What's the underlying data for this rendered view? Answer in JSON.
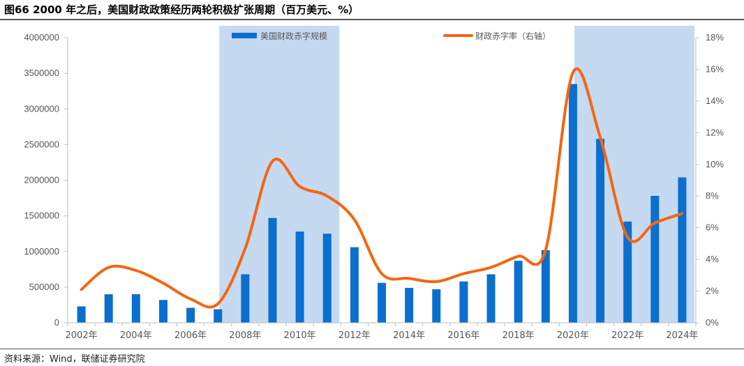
{
  "title": "图66 2000 年之后，美国财政政策经历两轮积极扩张周期（百万美元、%）",
  "source": "资料来源：Wind，联储证券研究院",
  "colors": {
    "bar": "#0a6fcf",
    "line": "#f5650f",
    "shade": "#c5d9f1",
    "axis": "#bfbfbf"
  },
  "chart_data": {
    "type": "bar",
    "title": "图66 2000 年之后，美国财政政策经历两轮积极扩张周期（百万美元、%）",
    "categories": [
      "2002年",
      "2003年",
      "2004年",
      "2005年",
      "2006年",
      "2007年",
      "2008年",
      "2009年",
      "2010年",
      "2011年",
      "2012年",
      "2013年",
      "2014年",
      "2015年",
      "2016年",
      "2017年",
      "2018年",
      "2019年",
      "2020年",
      "2021年",
      "2022年",
      "2023年",
      "2024年"
    ],
    "x_tick_labels": [
      "2002年",
      "",
      "2004年",
      "",
      "2006年",
      "",
      "2008年",
      "",
      "2010年",
      "",
      "2012年",
      "",
      "2014年",
      "",
      "2016年",
      "",
      "2018年",
      "",
      "2020年",
      "",
      "2022年",
      "",
      "2024年"
    ],
    "series": [
      {
        "name": "美国财政赤字规模",
        "type": "bar",
        "axis": "left",
        "values": [
          230000,
          400000,
          400000,
          320000,
          210000,
          190000,
          680000,
          1470000,
          1280000,
          1250000,
          1060000,
          560000,
          490000,
          470000,
          580000,
          680000,
          870000,
          1020000,
          3350000,
          2580000,
          1420000,
          1780000,
          2040000
        ]
      },
      {
        "name": "财政赤字率（右轴）",
        "type": "line",
        "axis": "right",
        "values": [
          2.1,
          3.5,
          3.3,
          2.5,
          1.5,
          1.2,
          4.7,
          10.2,
          8.6,
          8.0,
          6.5,
          3.1,
          2.8,
          2.6,
          3.1,
          3.5,
          4.2,
          4.6,
          15.8,
          11.7,
          5.4,
          6.3,
          6.9
        ]
      }
    ],
    "y_left": {
      "min": 0,
      "max": 4000000,
      "ticks": [
        "0",
        "500000",
        "1000000",
        "1500000",
        "2000000",
        "2500000",
        "3000000",
        "3500000",
        "4000000"
      ]
    },
    "y_right": {
      "min": 0,
      "max": 18,
      "ticks": [
        "0%",
        "2%",
        "4%",
        "6%",
        "8%",
        "10%",
        "12%",
        "14%",
        "16%",
        "18%"
      ]
    },
    "shaded_periods": [
      {
        "start": "2007年",
        "end": "2011年"
      },
      {
        "start": "2020年",
        "end": "2024年"
      }
    ],
    "legend": [
      "美国财政赤字规模",
      "财政赤字率（右轴）"
    ]
  }
}
